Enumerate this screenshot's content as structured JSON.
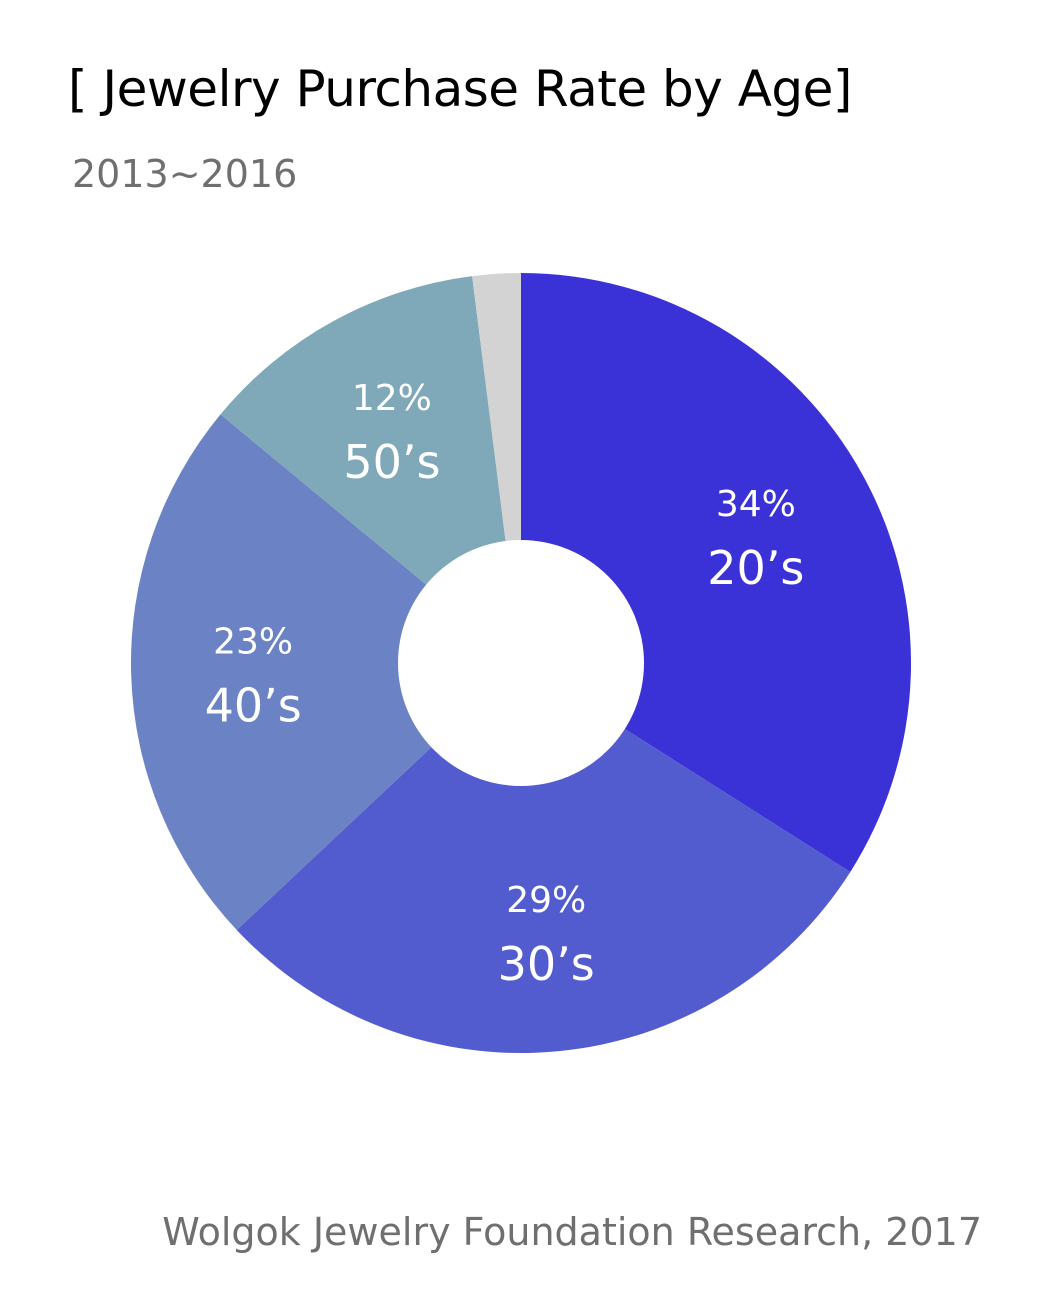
{
  "header": {
    "title": "[ Jewelry Purchase Rate by Age]",
    "subtitle": "2013~2016"
  },
  "footer": {
    "source": "Wolgok Jewelry Foundation Research, 2017"
  },
  "chart_data": {
    "type": "pie",
    "title": "[ Jewelry Purchase Rate by Age]",
    "subtitle": "2013~2016",
    "slices": [
      {
        "label": "20’s",
        "value_label": "34%",
        "value": 34,
        "color": "#3a32d6"
      },
      {
        "label": "30’s",
        "value_label": "29%",
        "value": 29,
        "color": "#525ccf"
      },
      {
        "label": "40’s",
        "value_label": "23%",
        "value": 23,
        "color": "#6b82c4"
      },
      {
        "label": "50’s",
        "value_label": "12%",
        "value": 12,
        "color": "#7fa9b9"
      },
      {
        "label": "",
        "value_label": "",
        "value": 2,
        "color": "#d3d3d3"
      }
    ],
    "donut": true
  }
}
